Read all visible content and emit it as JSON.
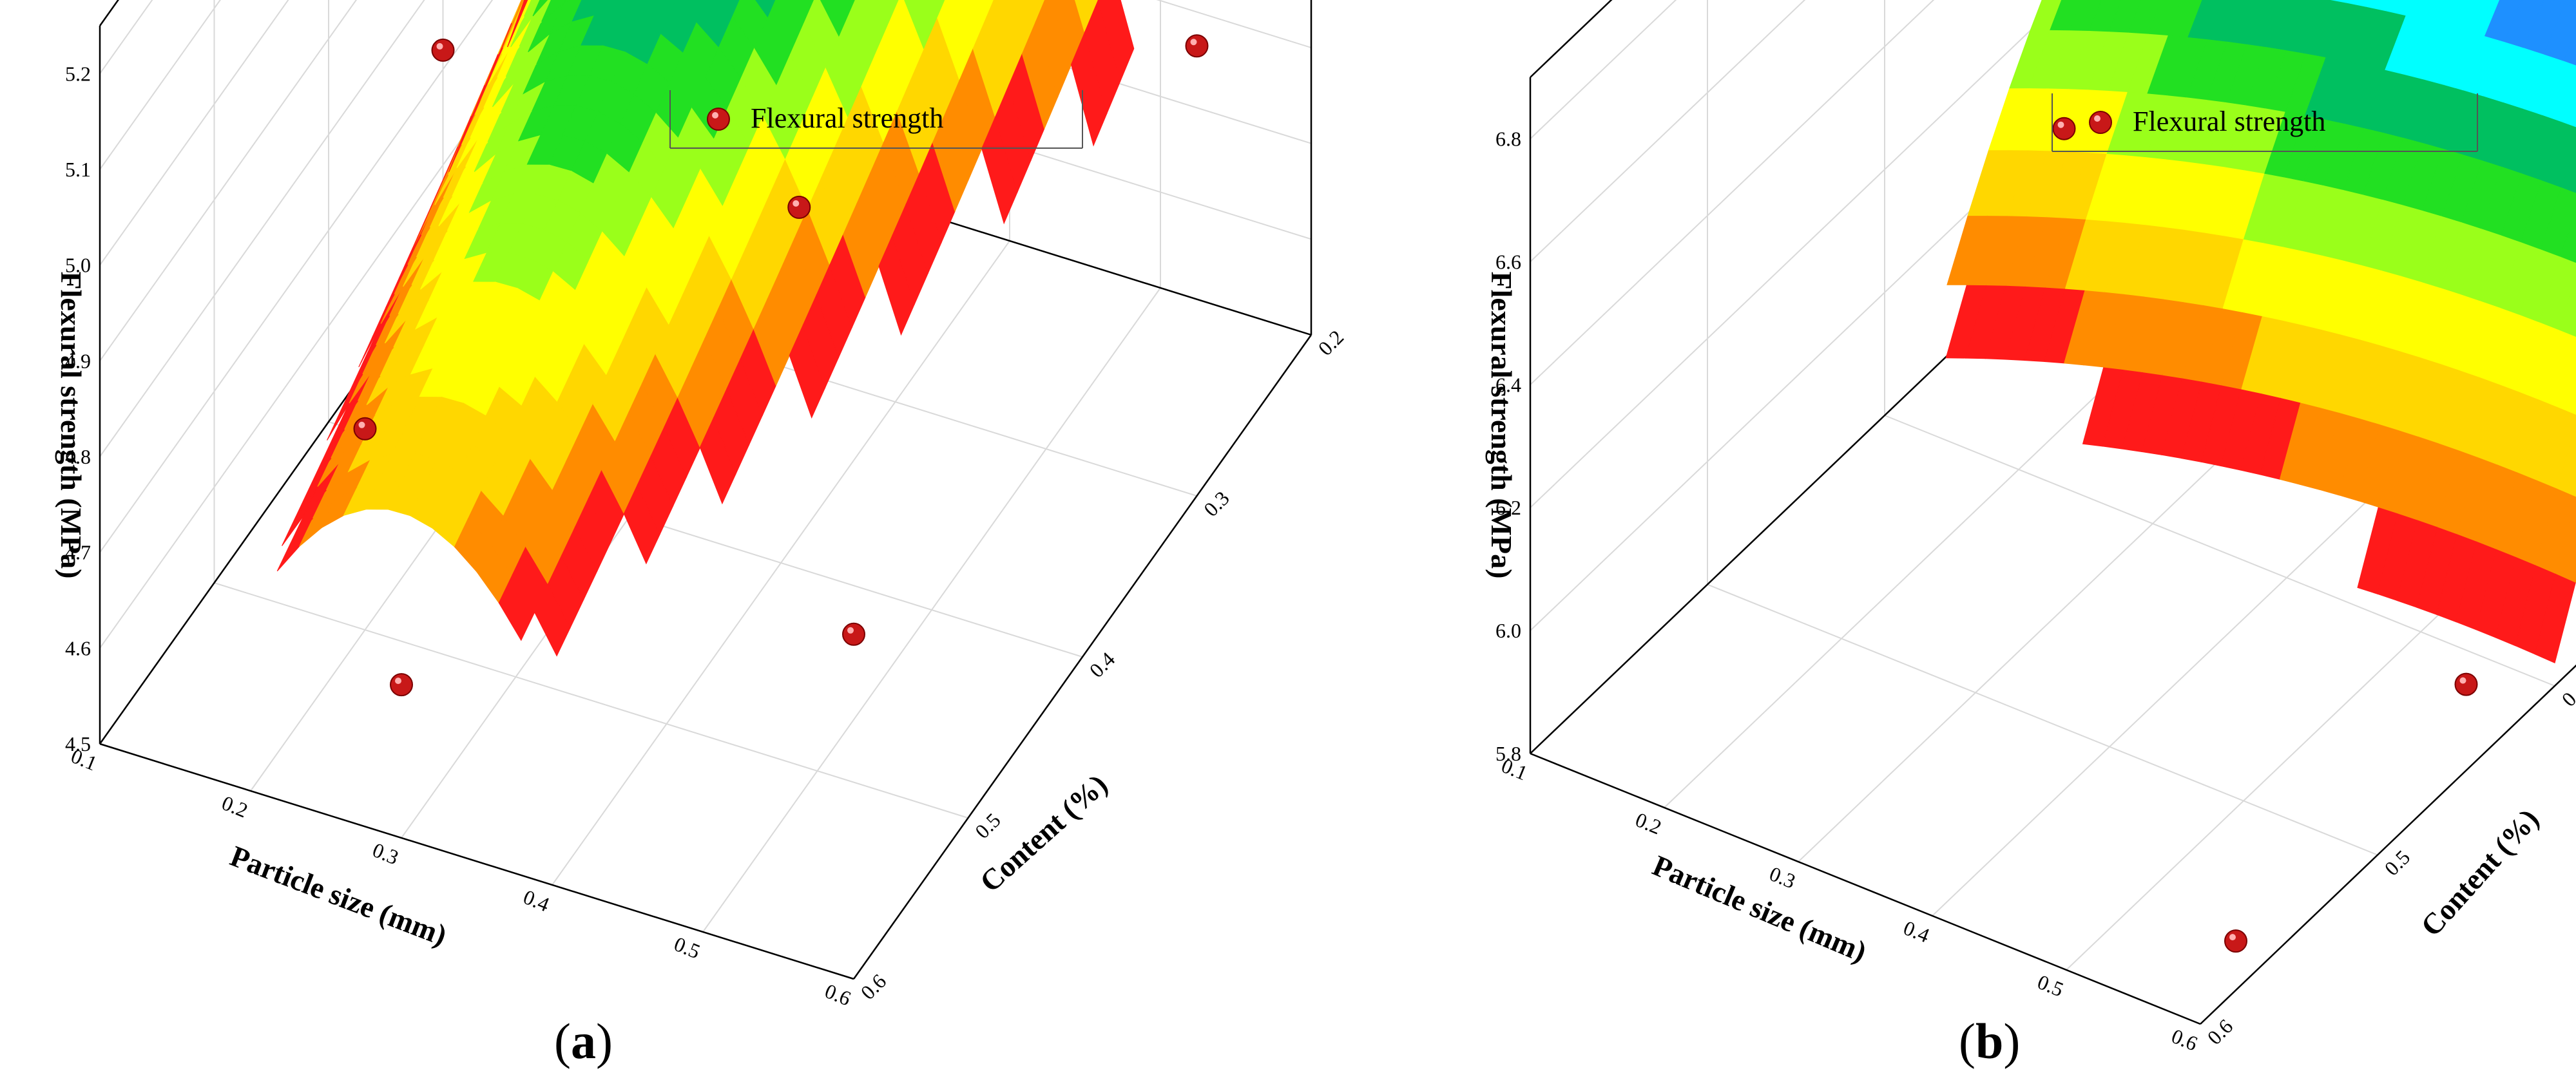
{
  "panels": [
    {
      "label_open": "(",
      "label_letter": "a",
      "label_close": ")",
      "chart_data": {
        "type": "3d-surface-scatter",
        "title": "",
        "xlabel": "Particle size (mm)",
        "ylabel": "Content  (%)",
        "zlabel": "Flexural strength (MPa)",
        "legend": {
          "entries": [
            "Flexural strength"
          ],
          "position": "top-right"
        },
        "x_ticks": [
          "0.1",
          "0.2",
          "0.3",
          "0.4",
          "0.5",
          "0.6"
        ],
        "y_ticks": [
          "0.2",
          "0.3",
          "0.4",
          "0.5",
          "0.6"
        ],
        "z_ticks": [
          "4.5",
          "4.6",
          "4.7",
          "4.8",
          "4.9",
          "5.0",
          "5.1",
          "5.2"
        ],
        "xlim": [
          0.1,
          0.6
        ],
        "ylim": [
          0.6,
          0.2
        ],
        "zlim": [
          4.5,
          5.25
        ],
        "grid": true,
        "colormap": [
          "#ff1a1a",
          "#ff8c00",
          "#ffd700",
          "#ffff00",
          "#9aff1a",
          "#22e022",
          "#00c060",
          "#00ffff",
          "#1e90ff",
          "#1c5fe0",
          "#1010c8"
        ],
        "surface_model": {
          "a": 5.0,
          "b": -15.0,
          "c": 0.3,
          "d": 0.5,
          "f": -0.8,
          "g": 0.6,
          "z_cut_low": 4.74
        },
        "points": [
          {
            "x": 0.15,
            "y": 0.2,
            "z": 5.21
          },
          {
            "x": 0.35,
            "y": 0.2,
            "z": 5.12
          },
          {
            "x": 0.3,
            "y": 0.35,
            "z": 5.06
          },
          {
            "x": 0.45,
            "y": 0.45,
            "z": 4.98
          },
          {
            "x": 0.6,
            "y": 0.3,
            "z": 4.97
          },
          {
            "x": 0.6,
            "y": 0.6,
            "z": 4.86
          },
          {
            "x": 0.1,
            "y": 0.3,
            "z": 4.72
          },
          {
            "x": 0.2,
            "y": 0.5,
            "z": 4.71
          },
          {
            "x": 0.3,
            "y": 0.6,
            "z": 4.66
          }
        ]
      }
    },
    {
      "label_open": "(",
      "label_letter": "b",
      "label_close": ")",
      "chart_data": {
        "type": "3d-surface-scatter",
        "title": "",
        "xlabel": "Particle size (mm)",
        "ylabel": "Content  (%)",
        "zlabel": "Flexural strength (MPa)",
        "legend": {
          "entries": [
            "Flexural strength"
          ],
          "position": "top-right"
        },
        "x_ticks": [
          "0.1",
          "0.2",
          "0.3",
          "0.4",
          "0.5",
          "0.6"
        ],
        "y_ticks": [
          "0.2",
          "0.3",
          "0.4",
          "0.5",
          "0.6"
        ],
        "z_ticks": [
          "5.8",
          "6.0",
          "6.2",
          "6.4",
          "6.6",
          "6.8"
        ],
        "xlim": [
          0.1,
          0.6
        ],
        "ylim": [
          0.6,
          0.2
        ],
        "zlim": [
          5.8,
          6.9
        ],
        "grid": true,
        "colormap": [
          "#ff1a1a",
          "#ff8c00",
          "#ffd700",
          "#ffff00",
          "#9aff1a",
          "#22e022",
          "#00c060",
          "#00ffff",
          "#1e90ff",
          "#1c5fe0",
          "#1010c8"
        ],
        "surface_model": {
          "a": 6.72,
          "b": -1.0,
          "c": 0.55,
          "d": -22.0,
          "f": 0.15,
          "g": 0.2,
          "z_cut_low": 5.88
        },
        "points": [
          {
            "x": 0.1,
            "y": 0.25,
            "z": 6.52
          },
          {
            "x": 0.2,
            "y": 0.2,
            "z": 6.86
          },
          {
            "x": 0.3,
            "y": 0.45,
            "z": 6.58
          },
          {
            "x": 0.6,
            "y": 0.3,
            "z": 6.0
          },
          {
            "x": 0.6,
            "y": 0.45,
            "z": 5.94
          },
          {
            "x": 0.6,
            "y": 0.58,
            "z": 5.88
          }
        ]
      }
    }
  ]
}
